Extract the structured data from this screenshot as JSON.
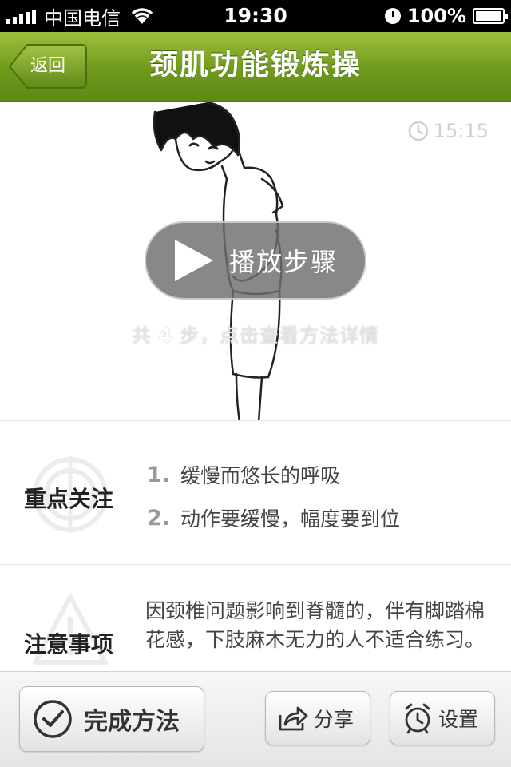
{
  "status_bar": {
    "carrier": "中国电信",
    "time": "19:30",
    "battery": "100%"
  },
  "nav": {
    "back_label": "返回",
    "title": "颈肌功能锻炼操"
  },
  "hero": {
    "timer": "15:15",
    "play_label": "播放步骤",
    "hint_prefix": "共",
    "step_count": "4",
    "hint_suffix": "步，点击查看方法详情"
  },
  "focus": {
    "title": "重点关注",
    "items": [
      {
        "num": "1.",
        "text": "缓慢而悠长的呼吸"
      },
      {
        "num": "2.",
        "text": "动作要缓慢，幅度要到位"
      }
    ]
  },
  "notes": {
    "title": "注意事项",
    "text": "因颈椎问题影响到脊髓的，伴有脚踏棉花感，下肢麻木无力的人不适合练习。"
  },
  "toolbar": {
    "done_label": "完成方法",
    "share_label": "分享",
    "settings_label": "设置"
  },
  "colors": {
    "nav_green": "#6f9a1c",
    "nav_green_light": "#9fbf3c"
  }
}
